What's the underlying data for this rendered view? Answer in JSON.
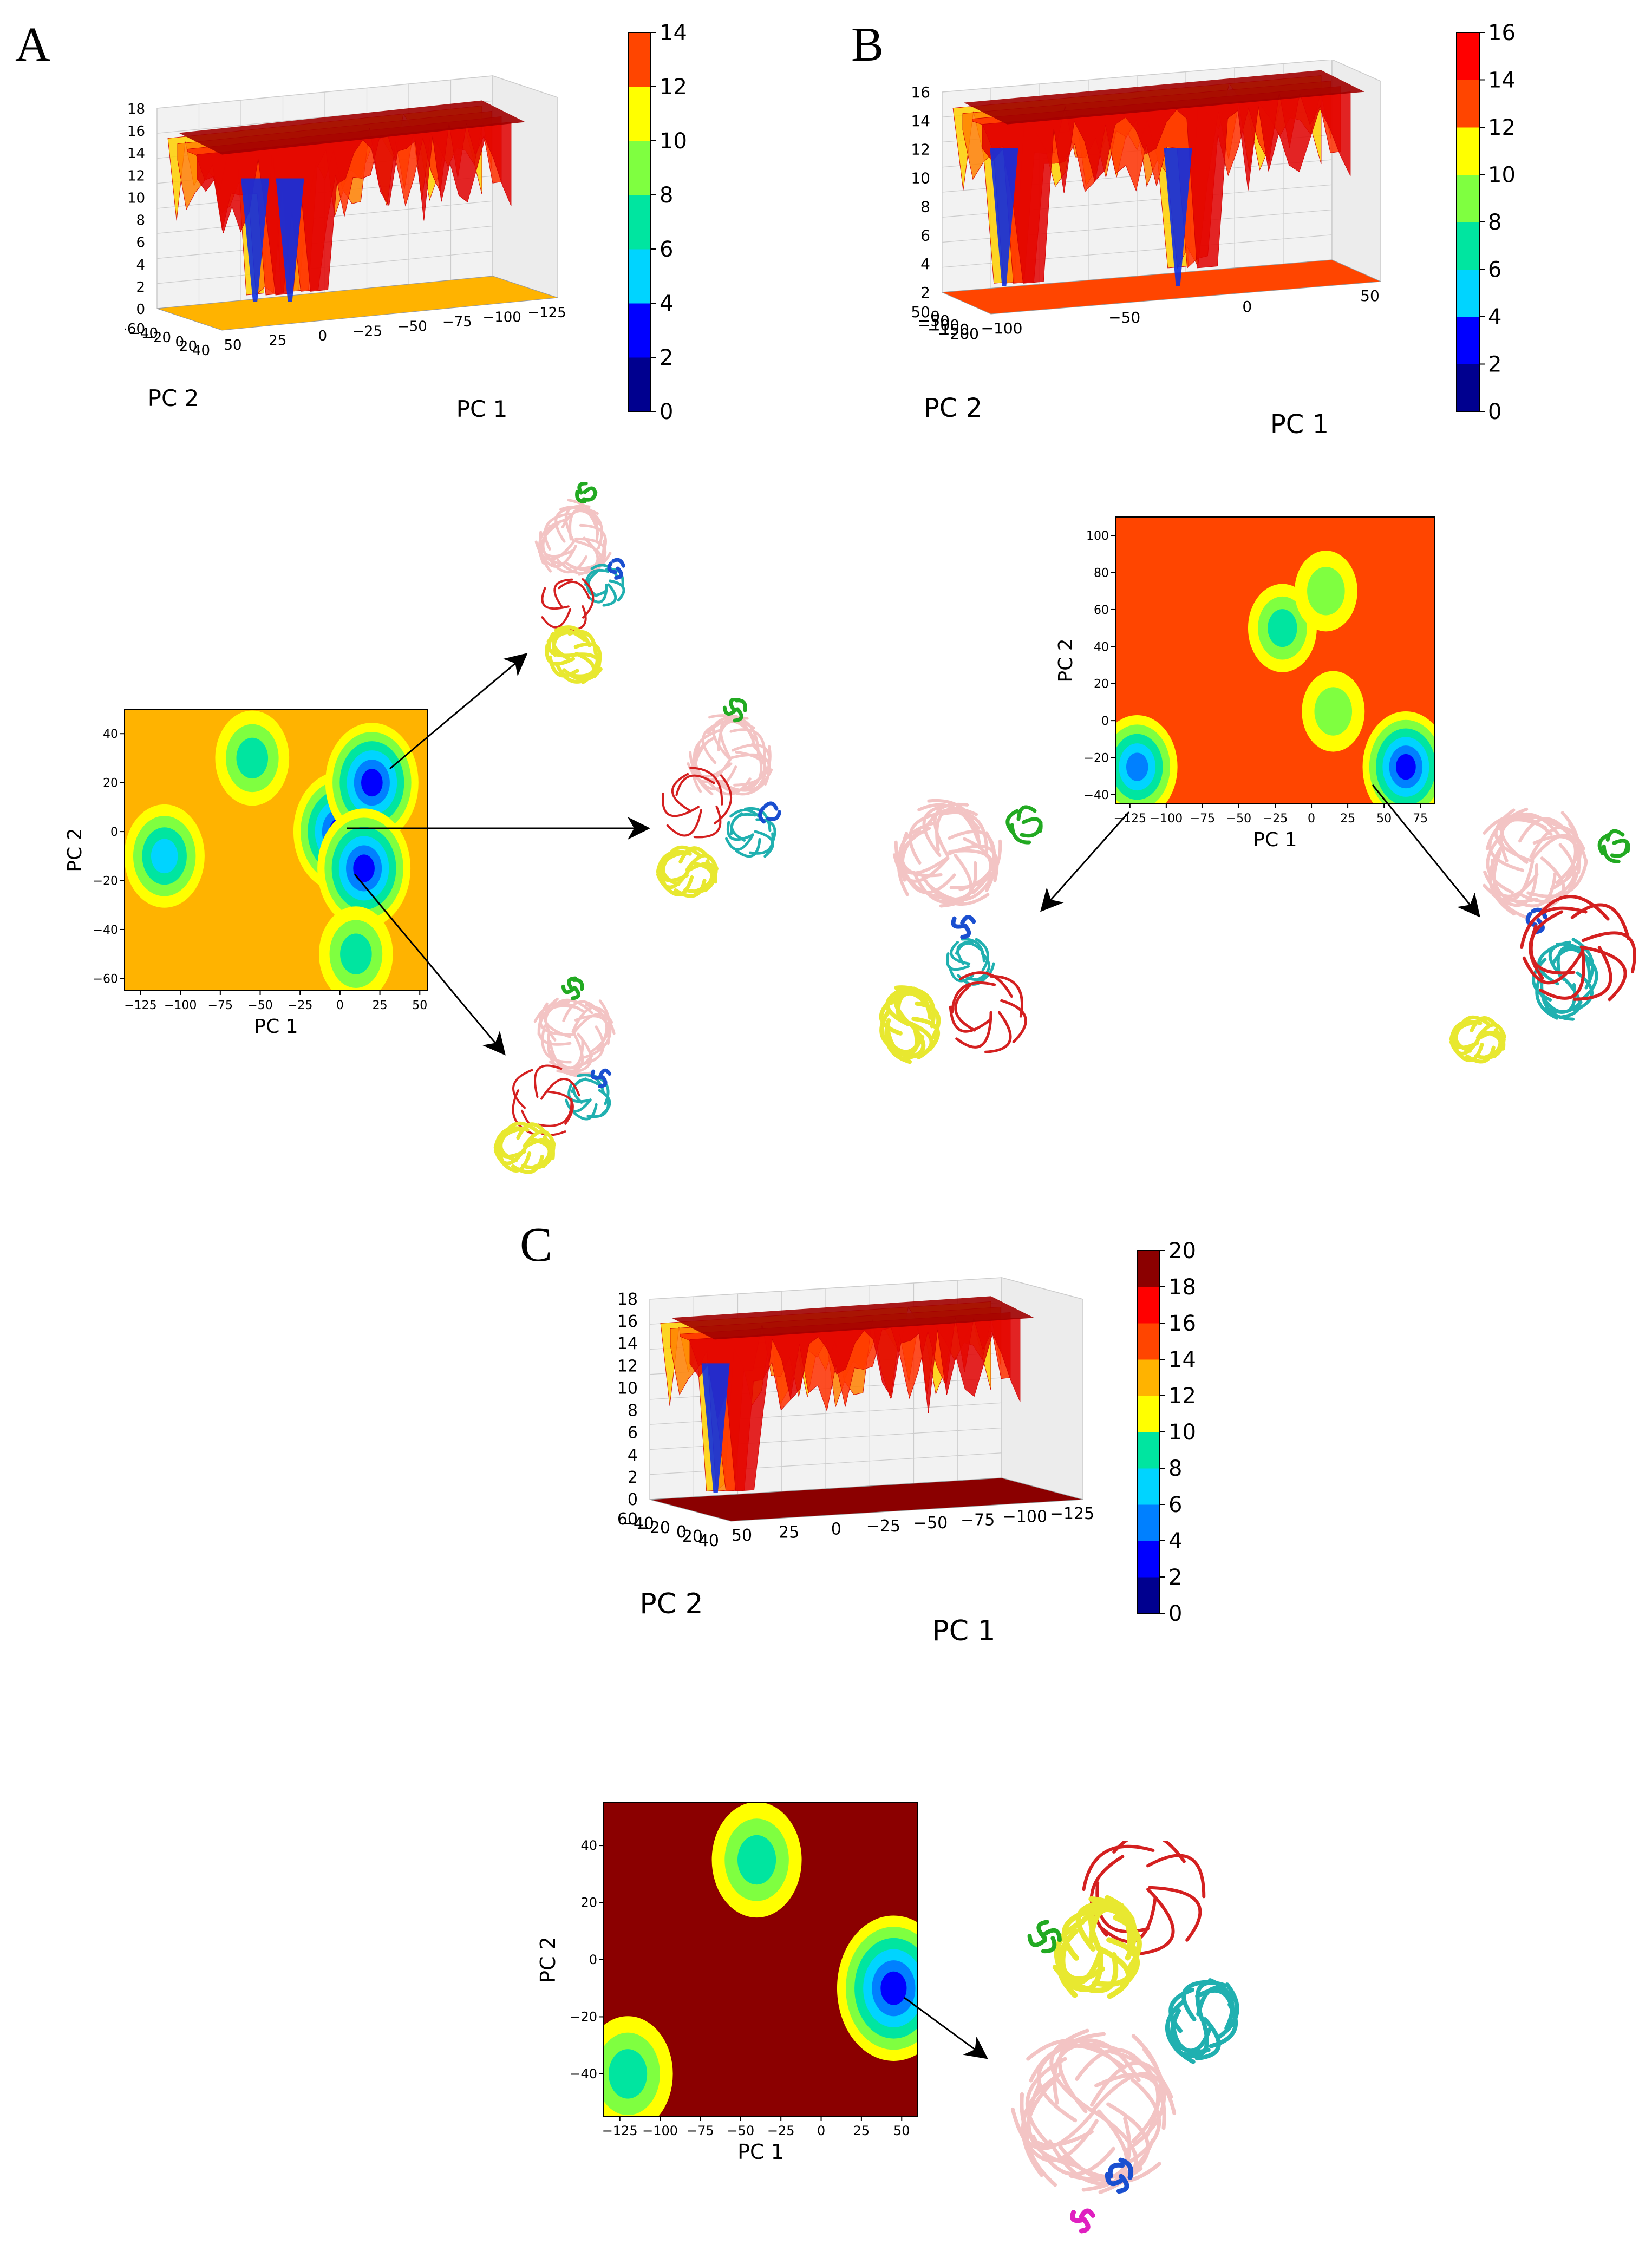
{
  "panels": {
    "A": {
      "letter": "A",
      "surface3d": {
        "xlabel": "PC 1",
        "ylabel": "PC 2",
        "xticks": [
          "50",
          "25",
          "0",
          "−25",
          "−50",
          "−75",
          "−100",
          "−125"
        ],
        "yticks": [
          "−60",
          "−40",
          "−20",
          "0",
          "20",
          "40"
        ],
        "zticks": [
          "0",
          "2",
          "4",
          "6",
          "8",
          "10",
          "12",
          "14",
          "16",
          "18"
        ]
      },
      "colorbar": {
        "ticks": [
          "0",
          "2",
          "4",
          "6",
          "8",
          "10",
          "12",
          "14"
        ],
        "max": 14
      },
      "contour2d": {
        "xlabel": "PC 1",
        "ylabel": "PC 2",
        "xticks": [
          "−125",
          "−100",
          "−75",
          "−50",
          "−25",
          "0",
          "25",
          "50"
        ],
        "yticks": [
          "40",
          "20",
          "0",
          "−20",
          "−40",
          "−60"
        ],
        "xlim": [
          -135,
          55
        ],
        "ylim": [
          -65,
          50
        ],
        "background": "#ffb300",
        "basins": [
          {
            "x": 0,
            "y": 0,
            "depth": 1
          },
          {
            "x": 20,
            "y": 20,
            "depth": 1
          },
          {
            "x": 15,
            "y": -15,
            "depth": 1
          },
          {
            "x": -110,
            "y": -10,
            "depth": 3
          },
          {
            "x": -55,
            "y": 30,
            "depth": 4
          },
          {
            "x": 10,
            "y": -50,
            "depth": 4
          }
        ]
      }
    },
    "B": {
      "letter": "B",
      "surface3d": {
        "xlabel": "PC 1",
        "ylabel": "PC 2",
        "xticks": [
          "−100",
          "−50",
          "0",
          "50"
        ],
        "yticks": [
          "50",
          "0",
          "−50",
          "−100",
          "−150",
          "−200"
        ],
        "zticks": [
          "2",
          "4",
          "6",
          "8",
          "10",
          "12",
          "14",
          "16"
        ]
      },
      "colorbar": {
        "ticks": [
          "0",
          "2",
          "4",
          "6",
          "8",
          "10",
          "12",
          "14",
          "16"
        ],
        "max": 16
      },
      "contour2d": {
        "xlabel": "PC 1",
        "ylabel": "PC 2",
        "xticks": [
          "−125",
          "−100",
          "−75",
          "−50",
          "−25",
          "0",
          "25",
          "50",
          "75"
        ],
        "yticks": [
          "100",
          "80",
          "60",
          "40",
          "20",
          "0",
          "−20",
          "−40"
        ],
        "xlim": [
          -135,
          85
        ],
        "ylim": [
          -45,
          110
        ],
        "background": "#ff4500",
        "basins": [
          {
            "x": -120,
            "y": -25,
            "depth": 2
          },
          {
            "x": 65,
            "y": -25,
            "depth": 1
          },
          {
            "x": -20,
            "y": 50,
            "depth": 4
          },
          {
            "x": 10,
            "y": 70,
            "depth": 5
          },
          {
            "x": 15,
            "y": 5,
            "depth": 5
          }
        ]
      }
    },
    "C": {
      "letter": "C",
      "surface3d": {
        "xlabel": "PC 1",
        "ylabel": "PC 2",
        "xticks": [
          "50",
          "25",
          "0",
          "−25",
          "−50",
          "−75",
          "−100",
          "−125"
        ],
        "yticks": [
          "−60",
          "−40",
          "−20",
          "0",
          "20",
          "40"
        ],
        "zticks": [
          "0",
          "2",
          "4",
          "6",
          "8",
          "10",
          "12",
          "14",
          "16",
          "18"
        ]
      },
      "colorbar": {
        "ticks": [
          "0",
          "2",
          "4",
          "6",
          "8",
          "10",
          "12",
          "14",
          "16",
          "18",
          "20"
        ],
        "max": 20
      },
      "contour2d": {
        "xlabel": "PC 1",
        "ylabel": "PC 2",
        "xticks": [
          "−125",
          "−100",
          "−75",
          "−50",
          "−25",
          "0",
          "25",
          "50"
        ],
        "yticks": [
          "40",
          "20",
          "0",
          "−20",
          "−40"
        ],
        "xlim": [
          -135,
          60
        ],
        "ylim": [
          -55,
          55
        ],
        "background": "#8b0000",
        "basins": [
          {
            "x": 45,
            "y": -10,
            "depth": 1
          },
          {
            "x": -40,
            "y": 35,
            "depth": 4
          },
          {
            "x": -120,
            "y": -40,
            "depth": 4
          }
        ]
      }
    }
  },
  "colors": {
    "jet": [
      "#00008f",
      "#0000ff",
      "#0080ff",
      "#00d4ff",
      "#00e5a0",
      "#7fff40",
      "#ffff00",
      "#ffb300",
      "#ff4500",
      "#ff0000",
      "#8b0000"
    ],
    "protein_body": "#f3c4c4",
    "protein_red": "#d42020",
    "protein_yellow": "#e8e830",
    "protein_cyan": "#20b0b0",
    "protein_blue": "#1a4fd0",
    "protein_green": "#22aa22",
    "protein_magenta": "#e020c0"
  },
  "chart_data": [
    {
      "type": "heatmap",
      "panel": "A",
      "kind": "free-energy landscape contour",
      "xlabel": "PC 1",
      "ylabel": "PC 2",
      "xlim": [
        -125,
        50
      ],
      "ylim": [
        -60,
        40
      ],
      "colorbar_range": [
        0,
        14
      ],
      "minima": [
        {
          "pc1": 0,
          "pc2": 0
        },
        {
          "pc1": 20,
          "pc2": 20
        },
        {
          "pc1": 15,
          "pc2": -15
        }
      ]
    },
    {
      "type": "heatmap",
      "panel": "B",
      "kind": "free-energy landscape contour",
      "xlabel": "PC 1",
      "ylabel": "PC 2",
      "xlim": [
        -125,
        75
      ],
      "ylim": [
        -40,
        100
      ],
      "colorbar_range": [
        0,
        16
      ],
      "minima": [
        {
          "pc1": -120,
          "pc2": -25
        },
        {
          "pc1": 65,
          "pc2": -25
        }
      ]
    },
    {
      "type": "heatmap",
      "panel": "C",
      "kind": "free-energy landscape contour",
      "xlabel": "PC 1",
      "ylabel": "PC 2",
      "xlim": [
        -125,
        50
      ],
      "ylim": [
        -40,
        40
      ],
      "colorbar_range": [
        0,
        20
      ],
      "minima": [
        {
          "pc1": 45,
          "pc2": -10
        }
      ]
    }
  ]
}
